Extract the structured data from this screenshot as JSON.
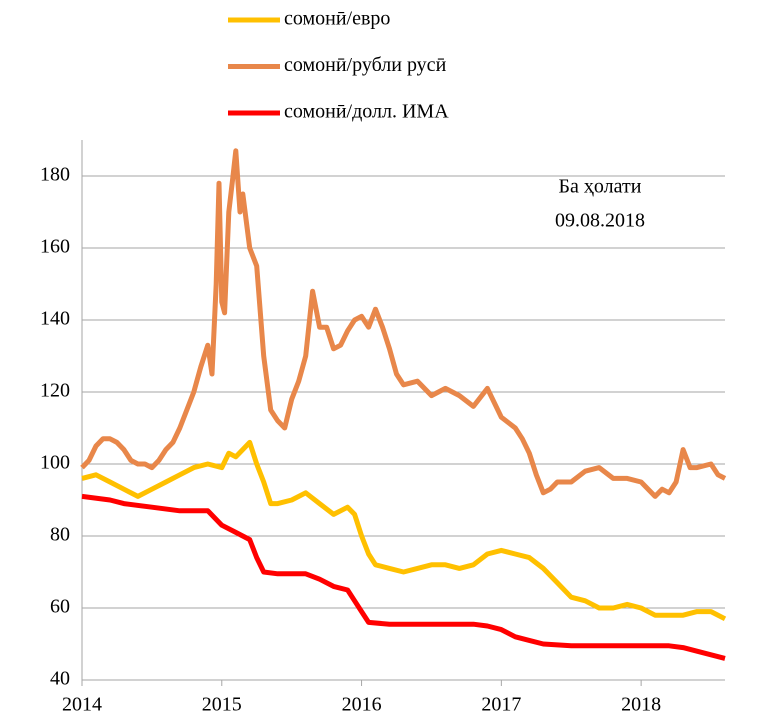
{
  "chart_data": {
    "type": "line",
    "annotation": [
      "Ба ҳолати",
      "09.08.2018"
    ],
    "xlim": [
      2014,
      2018.6
    ],
    "xticks": [
      2014,
      2015,
      2016,
      2017,
      2018
    ],
    "ylim": [
      40,
      190
    ],
    "yticks": [
      40,
      60,
      80,
      100,
      120,
      140,
      160,
      180
    ],
    "grid": true,
    "legend": "top",
    "series": [
      {
        "name": "сомонӣ/евро",
        "color": "#FFC000",
        "x": [
          2014.0,
          2014.1,
          2014.2,
          2014.3,
          2014.4,
          2014.5,
          2014.6,
          2014.7,
          2014.8,
          2014.9,
          2015.0,
          2015.05,
          2015.1,
          2015.2,
          2015.25,
          2015.3,
          2015.35,
          2015.4,
          2015.5,
          2015.6,
          2015.7,
          2015.8,
          2015.9,
          2015.95,
          2016.0,
          2016.05,
          2016.1,
          2016.2,
          2016.3,
          2016.4,
          2016.5,
          2016.6,
          2016.7,
          2016.8,
          2016.9,
          2017.0,
          2017.1,
          2017.2,
          2017.3,
          2017.4,
          2017.5,
          2017.6,
          2017.7,
          2017.8,
          2017.9,
          2018.0,
          2018.1,
          2018.2,
          2018.3,
          2018.4,
          2018.5,
          2018.6
        ],
        "values": [
          96,
          97,
          95,
          93,
          91,
          93,
          95,
          97,
          99,
          100,
          99,
          103,
          102,
          106,
          100,
          95,
          89,
          89,
          90,
          92,
          89,
          86,
          88,
          86,
          80,
          75,
          72,
          71,
          70,
          71,
          72,
          72,
          71,
          72,
          75,
          76,
          75,
          74,
          71,
          67,
          63,
          62,
          60,
          60,
          61,
          60,
          58,
          58,
          58,
          59,
          59,
          57
        ]
      },
      {
        "name": "сомонӣ/рубли русӣ",
        "color": "#E8874A",
        "x": [
          2014.0,
          2014.05,
          2014.1,
          2014.15,
          2014.2,
          2014.25,
          2014.3,
          2014.35,
          2014.4,
          2014.45,
          2014.5,
          2014.55,
          2014.6,
          2014.65,
          2014.7,
          2014.75,
          2014.8,
          2014.85,
          2014.9,
          2014.93,
          2014.96,
          2014.98,
          2015.0,
          2015.02,
          2015.05,
          2015.08,
          2015.1,
          2015.13,
          2015.15,
          2015.2,
          2015.25,
          2015.3,
          2015.35,
          2015.4,
          2015.45,
          2015.5,
          2015.55,
          2015.6,
          2015.65,
          2015.7,
          2015.75,
          2015.8,
          2015.85,
          2015.9,
          2015.95,
          2016.0,
          2016.05,
          2016.1,
          2016.15,
          2016.2,
          2016.25,
          2016.3,
          2016.4,
          2016.5,
          2016.6,
          2016.7,
          2016.8,
          2016.9,
          2017.0,
          2017.1,
          2017.15,
          2017.2,
          2017.25,
          2017.3,
          2017.35,
          2017.4,
          2017.5,
          2017.6,
          2017.7,
          2017.8,
          2017.9,
          2018.0,
          2018.1,
          2018.15,
          2018.2,
          2018.25,
          2018.3,
          2018.35,
          2018.4,
          2018.5,
          2018.55,
          2018.6
        ],
        "values": [
          99,
          101,
          105,
          107,
          107,
          106,
          104,
          101,
          100,
          100,
          99,
          101,
          104,
          106,
          110,
          115,
          120,
          127,
          133,
          125,
          150,
          178,
          145,
          142,
          170,
          180,
          187,
          170,
          175,
          160,
          155,
          130,
          115,
          112,
          110,
          118,
          123,
          130,
          148,
          138,
          138,
          132,
          133,
          137,
          140,
          141,
          138,
          143,
          138,
          132,
          125,
          122,
          123,
          119,
          121,
          119,
          116,
          121,
          113,
          110,
          107,
          103,
          97,
          92,
          93,
          95,
          95,
          98,
          99,
          96,
          96,
          95,
          91,
          93,
          92,
          95,
          104,
          99,
          99,
          100,
          97,
          96
        ]
      },
      {
        "name": "сомонӣ/долл. ИМА",
        "color": "#FF0000",
        "x": [
          2014.0,
          2014.2,
          2014.3,
          2014.5,
          2014.7,
          2014.9,
          2015.0,
          2015.1,
          2015.2,
          2015.25,
          2015.3,
          2015.4,
          2015.6,
          2015.7,
          2015.8,
          2015.9,
          2015.95,
          2016.0,
          2016.05,
          2016.2,
          2016.5,
          2016.8,
          2016.9,
          2017.0,
          2017.1,
          2017.2,
          2017.3,
          2017.5,
          2017.8,
          2018.0,
          2018.2,
          2018.3,
          2018.4,
          2018.5,
          2018.6
        ],
        "values": [
          91,
          90,
          89,
          88,
          87,
          87,
          83,
          81,
          79,
          74,
          70,
          69.5,
          69.5,
          68,
          66,
          65,
          62,
          59,
          56,
          55.5,
          55.5,
          55.5,
          55,
          54,
          52,
          51,
          50,
          49.5,
          49.5,
          49.5,
          49.5,
          49,
          48,
          47,
          46
        ]
      }
    ]
  }
}
